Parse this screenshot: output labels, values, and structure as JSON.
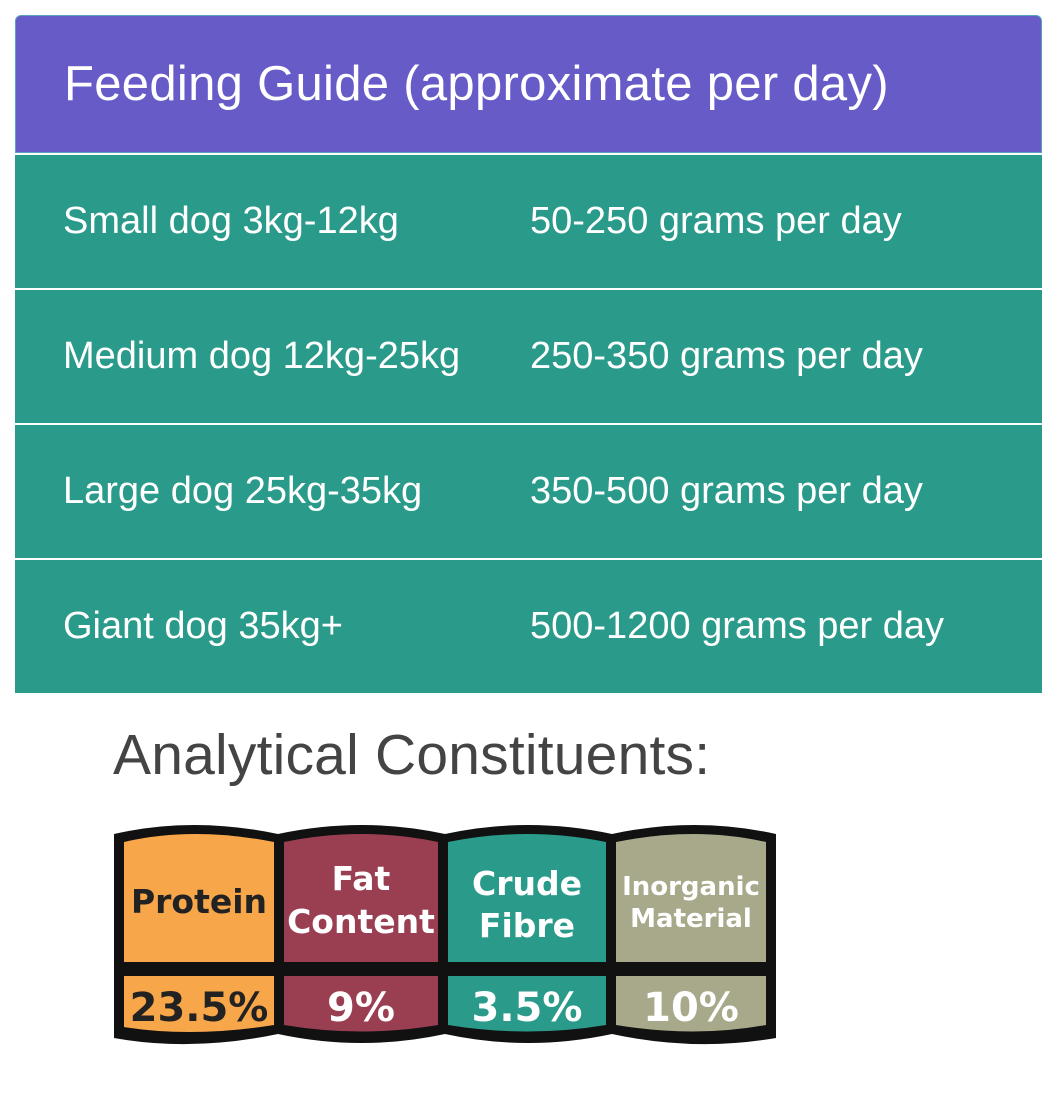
{
  "guide": {
    "title": "Feeding Guide (approximate per day)",
    "rows": [
      {
        "dog": "Small dog 3kg-12kg",
        "amount": "50-250 grams per day"
      },
      {
        "dog": "Medium dog 12kg-25kg",
        "amount": "250-350 grams per day"
      },
      {
        "dog": "Large dog 25kg-35kg",
        "amount": "350-500 grams per day"
      },
      {
        "dog": "Giant dog 35kg+",
        "amount": "500-1200 grams per day"
      }
    ]
  },
  "constituents": {
    "heading": "Analytical Constituents:",
    "items": [
      {
        "line1": "Protein",
        "line2": "",
        "value": "23.5%",
        "color": "#f7a64a"
      },
      {
        "line1": "Fat",
        "line2": "Content",
        "value": "9%",
        "color": "#9a3f52"
      },
      {
        "line1": "Crude",
        "line2": "Fibre",
        "value": "3.5%",
        "color": "#2a9a8a"
      },
      {
        "line1": "Inorganic",
        "line2": "Material",
        "value": "10%",
        "color": "#a8a98a"
      }
    ]
  },
  "colors": {
    "header_bg": "#665bc7",
    "row_bg": "#2a9a8a"
  }
}
